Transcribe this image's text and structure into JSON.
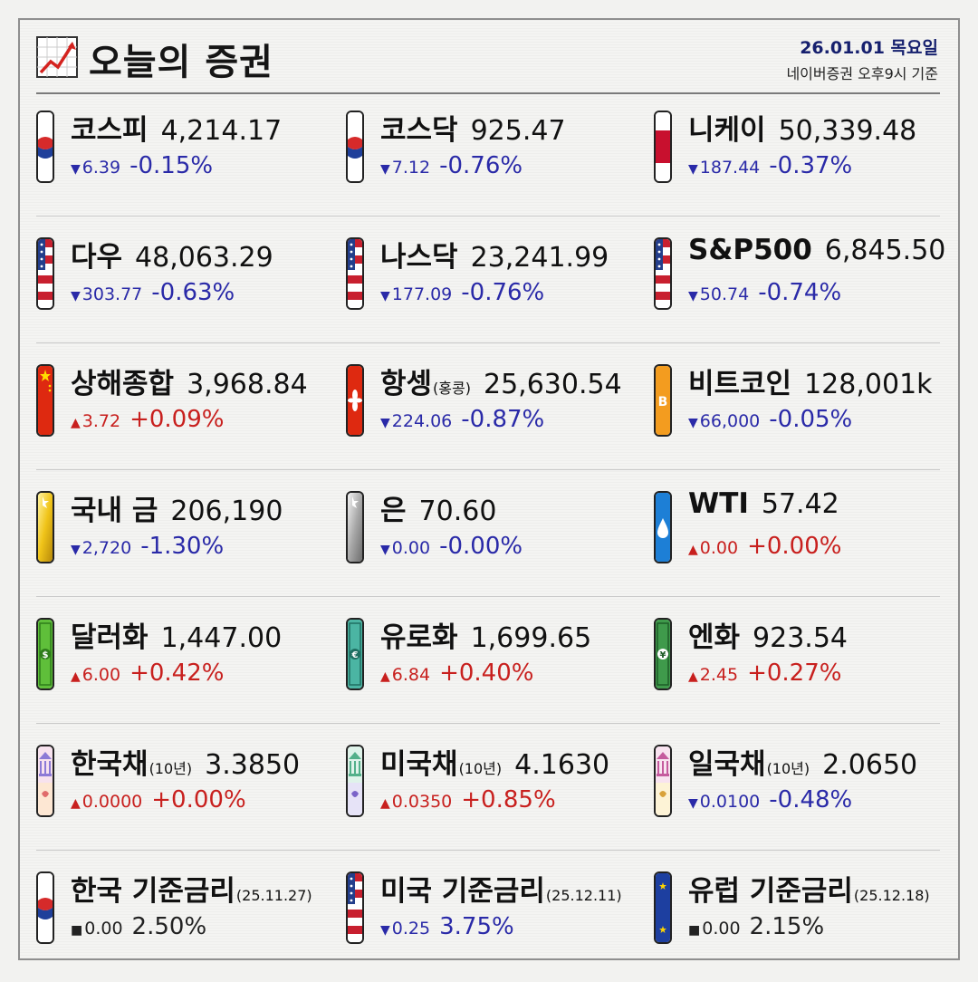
{
  "header": {
    "title": "오늘의 증권",
    "date": "26.01.01 목요일",
    "basis": "네이버증권 오후9시 기준",
    "logo_icon": "chart-up-icon"
  },
  "colors": {
    "down": "#2a2aa8",
    "up": "#c8201e",
    "date": "#16206e"
  },
  "rows": [
    [
      {
        "name": "코스피",
        "value": "4,214.17",
        "dir": "down",
        "arrow": "▼",
        "chg": "6.39",
        "pct": "-0.15%",
        "icon": "korea-flag-icon"
      },
      {
        "name": "코스닥",
        "value": "925.47",
        "dir": "down",
        "arrow": "▼",
        "chg": "7.12",
        "pct": "-0.76%",
        "icon": "korea-flag-icon"
      },
      {
        "name": "니케이",
        "value": "50,339.48",
        "dir": "down",
        "arrow": "▼",
        "chg": "187.44",
        "pct": "-0.37%",
        "icon": "japan-flag-icon"
      }
    ],
    [
      {
        "name": "다우",
        "value": "48,063.29",
        "dir": "down",
        "arrow": "▼",
        "chg": "303.77",
        "pct": "-0.63%",
        "icon": "usa-flag-icon"
      },
      {
        "name": "나스닥",
        "value": "23,241.99",
        "dir": "down",
        "arrow": "▼",
        "chg": "177.09",
        "pct": "-0.76%",
        "icon": "usa-flag-icon"
      },
      {
        "name": "S&P500",
        "value": "6,845.50",
        "dir": "down",
        "arrow": "▼",
        "chg": "50.74",
        "pct": "-0.74%",
        "icon": "usa-flag-icon"
      }
    ],
    [
      {
        "name": "상해종합",
        "value": "3,968.84",
        "dir": "up",
        "arrow": "▲",
        "chg": "3.72",
        "pct": "+0.09%",
        "icon": "china-flag-icon"
      },
      {
        "name": "항셍",
        "sub": "(홍콩)",
        "value": "25,630.54",
        "dir": "down",
        "arrow": "▼",
        "chg": "224.06",
        "pct": "-0.87%",
        "icon": "hongkong-flag-icon"
      },
      {
        "name": "비트코인",
        "value": "128,001k",
        "dir": "down",
        "arrow": "▼",
        "chg": "66,000",
        "pct": "-0.05%",
        "icon": "bitcoin-icon"
      }
    ],
    [
      {
        "name": "국내 금",
        "value": "206,190",
        "dir": "down",
        "arrow": "▼",
        "chg": "2,720",
        "pct": "-1.30%",
        "icon": "gold-bar-icon"
      },
      {
        "name": "은",
        "value": "70.60",
        "dir": "down",
        "arrow": "▼",
        "chg": "0.00",
        "pct": "-0.00%",
        "icon": "silver-bar-icon"
      },
      {
        "name": "WTI",
        "value": "57.42",
        "dir": "up",
        "arrow": "▲",
        "chg": "0.00",
        "pct": "+0.00%",
        "icon": "oil-drop-icon"
      }
    ],
    [
      {
        "name": "달러화",
        "value": "1,447.00",
        "dir": "up",
        "arrow": "▲",
        "chg": "6.00",
        "pct": "+0.42%",
        "icon": "dollar-note-icon"
      },
      {
        "name": "유로화",
        "value": "1,699.65",
        "dir": "up",
        "arrow": "▲",
        "chg": "6.84",
        "pct": "+0.40%",
        "icon": "euro-note-icon"
      },
      {
        "name": "엔화",
        "value": "923.54",
        "dir": "up",
        "arrow": "▲",
        "chg": "2.45",
        "pct": "+0.27%",
        "icon": "yen-note-icon"
      }
    ],
    [
      {
        "name": "한국채",
        "sub": "(10년)",
        "value": "3.3850",
        "dir": "up",
        "arrow": "▲",
        "chg": "0.0000",
        "pct": "+0.00%",
        "icon": "korea-bond-icon"
      },
      {
        "name": "미국채",
        "sub": "(10년)",
        "value": "4.1630",
        "dir": "up",
        "arrow": "▲",
        "chg": "0.0350",
        "pct": "+0.85%",
        "icon": "us-bond-icon"
      },
      {
        "name": "일국채",
        "sub": "(10년)",
        "value": "2.0650",
        "dir": "down",
        "arrow": "▼",
        "chg": "0.0100",
        "pct": "-0.48%",
        "icon": "japan-bond-icon"
      }
    ],
    [
      {
        "name": "한국 기준금리",
        "sub": "(25.11.27)",
        "value": "",
        "dir": "flat",
        "arrow": "■",
        "chg": "0.00",
        "pct": "2.50%",
        "icon": "korea-flag-icon"
      },
      {
        "name": "미국 기준금리",
        "sub": "(25.12.11)",
        "value": "",
        "dir": "down",
        "arrow": "▼",
        "chg": "0.25",
        "pct": "3.75%",
        "icon": "usa-flag-icon"
      },
      {
        "name": "유럽 기준금리",
        "sub": "(25.12.18)",
        "value": "",
        "dir": "flat",
        "arrow": "■",
        "chg": "0.00",
        "pct": "2.15%",
        "icon": "eu-flag-icon"
      }
    ]
  ]
}
